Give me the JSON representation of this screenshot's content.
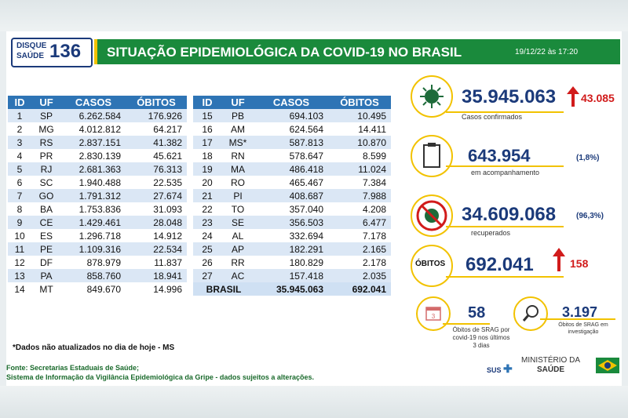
{
  "logo": {
    "line1": "DISQUE",
    "line2": "SAÚDE",
    "number": "136"
  },
  "header": {
    "title": "SITUAÇÃO EPIDEMIOLÓGICA DA COVID-19 NO BRASIL",
    "date": "19/12/22 às 17:20"
  },
  "table": {
    "headers": [
      "ID",
      "UF",
      "CASOS",
      "ÓBITOS"
    ],
    "left": [
      [
        "1",
        "SP",
        "6.262.584",
        "176.926"
      ],
      [
        "2",
        "MG",
        "4.012.812",
        "64.217"
      ],
      [
        "3",
        "RS",
        "2.837.151",
        "41.382"
      ],
      [
        "4",
        "PR",
        "2.830.139",
        "45.621"
      ],
      [
        "5",
        "RJ",
        "2.681.363",
        "76.313"
      ],
      [
        "6",
        "SC",
        "1.940.488",
        "22.535"
      ],
      [
        "7",
        "GO",
        "1.791.312",
        "27.674"
      ],
      [
        "8",
        "BA",
        "1.753.836",
        "31.093"
      ],
      [
        "9",
        "CE",
        "1.429.461",
        "28.048"
      ],
      [
        "10",
        "ES",
        "1.296.718",
        "14.912"
      ],
      [
        "11",
        "PE",
        "1.109.316",
        "22.534"
      ],
      [
        "12",
        "DF",
        "878.979",
        "11.837"
      ],
      [
        "13",
        "PA",
        "858.760",
        "18.941"
      ],
      [
        "14",
        "MT",
        "849.670",
        "14.996"
      ]
    ],
    "right": [
      [
        "15",
        "PB",
        "694.103",
        "10.495"
      ],
      [
        "16",
        "AM",
        "624.564",
        "14.411"
      ],
      [
        "17",
        "MS*",
        "587.813",
        "10.870"
      ],
      [
        "18",
        "RN",
        "578.647",
        "8.599"
      ],
      [
        "19",
        "MA",
        "486.418",
        "11.024"
      ],
      [
        "20",
        "RO",
        "465.467",
        "7.384"
      ],
      [
        "21",
        "PI",
        "408.687",
        "7.988"
      ],
      [
        "22",
        "TO",
        "357.040",
        "4.208"
      ],
      [
        "23",
        "SE",
        "356.503",
        "6.477"
      ],
      [
        "24",
        "AL",
        "332.694",
        "7.178"
      ],
      [
        "25",
        "AP",
        "182.291",
        "2.165"
      ],
      [
        "26",
        "RR",
        "180.829",
        "2.178"
      ],
      [
        "27",
        "AC",
        "157.418",
        "2.035"
      ]
    ],
    "total": {
      "label": "BRASIL",
      "casos": "35.945.063",
      "obitos": "692.041"
    }
  },
  "note": "*Dados não atualizados no dia de hoje - MS",
  "source": {
    "line1": "Fonte: Secretarias Estaduais de Saúde;",
    "line2": "Sistema de Informação da Vigilância Epidemiológica da Gripe - dados sujeitos a alterações."
  },
  "stats": {
    "confirmed": {
      "value": "35.945.063",
      "increase": "43.085",
      "label": "Casos confirmados",
      "icon": "virus-icon"
    },
    "monitoring": {
      "value": "643.954",
      "percent": "(1,8%)",
      "label": "em acompanhamento",
      "icon": "clipboard-icon"
    },
    "recovered": {
      "value": "34.609.068",
      "percent": "(96,3%)",
      "label": "recuperados",
      "icon": "no-virus-icon"
    },
    "deaths": {
      "badge": "ÓBITOS",
      "value": "692.041",
      "increase": "158"
    },
    "srag_3days": {
      "value": "58",
      "label1": "Óbitos de SRAG por",
      "label2": "covid-19 nos últimos",
      "label3": "3 dias",
      "icon": "calendar-icon"
    },
    "srag_investigation": {
      "value": "3.197",
      "label1": "Óbitos de SRAG em",
      "label2": "investigação",
      "icon": "magnifier-icon"
    }
  },
  "footer": {
    "sus": "SUS",
    "ministry1": "MINISTÉRIO DA",
    "ministry2": "SAÚDE"
  },
  "colors": {
    "green": "#1a8a3c",
    "navy": "#1b3a7a",
    "yellow": "#f2c200",
    "red": "#d11b1b",
    "table_header": "#2e74b5"
  }
}
